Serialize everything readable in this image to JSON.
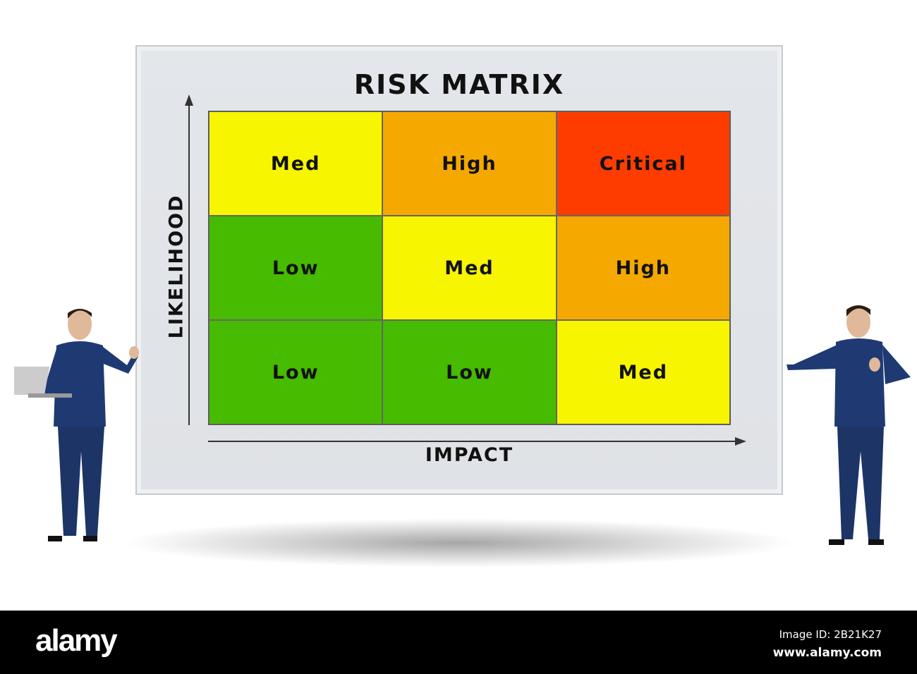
{
  "diagram": {
    "title": "RISK MATRIX",
    "y_axis_label": "LIKELIHOOD",
    "x_axis_label": "IMPACT",
    "rows": [
      [
        {
          "label": "Med",
          "color": "#f7f500"
        },
        {
          "label": "High",
          "color": "#f5a900"
        },
        {
          "label": "Critical",
          "color": "#ff3c00"
        }
      ],
      [
        {
          "label": "Low",
          "color": "#46bb00"
        },
        {
          "label": "Med",
          "color": "#f7f500"
        },
        {
          "label": "High",
          "color": "#f5a900"
        }
      ],
      [
        {
          "label": "Low",
          "color": "#46bb00"
        },
        {
          "label": "Low",
          "color": "#46bb00"
        },
        {
          "label": "Med",
          "color": "#f7f500"
        }
      ]
    ]
  },
  "footer": {
    "logo": "alamy",
    "image_id": "Image ID: 2B21K27",
    "url": "www.alamy.com"
  }
}
